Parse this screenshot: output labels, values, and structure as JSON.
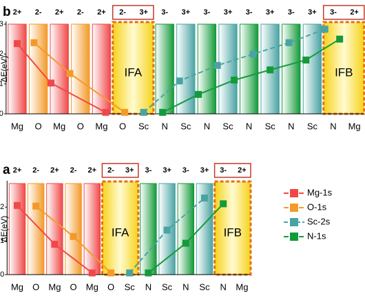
{
  "chart_data": [
    {
      "type": "line",
      "panel": "b",
      "y_label": "ΔE(eV)",
      "categories": [
        "Mg",
        "O",
        "Mg",
        "O",
        "Mg",
        "O",
        "Sc",
        "N",
        "Sc",
        "N",
        "Sc",
        "N",
        "Sc",
        "N",
        "Sc",
        "N",
        "Mg"
      ],
      "charges": [
        "2+",
        "2-",
        "2+",
        "2-",
        "2+",
        "2-",
        "3+",
        "3-",
        "3+",
        "3-",
        "3+",
        "3-",
        "3+",
        "3-",
        "3+",
        "3-",
        "2+"
      ],
      "interfaces": [
        {
          "label": "IFA",
          "categories": [
            5,
            6
          ]
        },
        {
          "label": "IFB",
          "categories": [
            15,
            16
          ]
        }
      ],
      "element_colors": {
        "Mg": "#f04848",
        "O": "#f39a2a",
        "Sc": "#4aa3a3",
        "N": "#139a3a"
      },
      "ylim": [
        0,
        3
      ],
      "yticks": [
        0,
        1,
        2,
        3
      ],
      "series": [
        {
          "color": "#f04848",
          "x": [
            0,
            1.6,
            4.2
          ],
          "values": [
            2.35,
            1.03,
            0.05
          ]
        },
        {
          "color": "#f39a2a",
          "x": [
            0.8,
            2.5,
            5.1
          ],
          "values": [
            2.38,
            1.35,
            0.05
          ]
        },
        {
          "color": "#4aa3a3",
          "dash": true,
          "x": [
            6,
            7.7,
            9.5,
            11.2,
            12.9,
            14.6
          ],
          "values": [
            0.05,
            1.1,
            1.62,
            2.0,
            2.38,
            2.83
          ]
        },
        {
          "color": "#139a3a",
          "x": [
            6.9,
            8.6,
            10.3,
            12.0,
            13.7,
            15.3
          ],
          "values": [
            0.05,
            0.65,
            1.13,
            1.47,
            1.8,
            2.5
          ]
        }
      ]
    },
    {
      "type": "line",
      "panel": "a",
      "y_label": "ΔE(eV)",
      "categories": [
        "Mg",
        "O",
        "Mg",
        "O",
        "Mg",
        "O",
        "Sc",
        "N",
        "Sc",
        "N",
        "Sc",
        "N",
        "Mg"
      ],
      "charges": [
        "2+",
        "2-",
        "2+",
        "2-",
        "2+",
        "2-",
        "3+",
        "3-",
        "3+",
        "3-",
        "3+",
        "3-",
        "2+"
      ],
      "interfaces": [
        {
          "label": "IFA",
          "categories": [
            5,
            6
          ]
        },
        {
          "label": "IFB",
          "categories": [
            11,
            12
          ]
        }
      ],
      "element_colors": {
        "Mg": "#f04848",
        "O": "#f39a2a",
        "Sc": "#4aa3a3",
        "N": "#139a3a"
      },
      "ylim": [
        0,
        2.7
      ],
      "yticks": [
        0,
        1,
        2
      ],
      "series": [
        {
          "name": "Mg-1s",
          "color": "#f04848",
          "x": [
            0,
            2,
            4
          ],
          "values": [
            2.05,
            0.9,
            0.05
          ]
        },
        {
          "name": "O-1s",
          "color": "#f39a2a",
          "x": [
            1,
            3,
            5
          ],
          "values": [
            2.03,
            1.13,
            0.05
          ]
        },
        {
          "name": "Sc-2s",
          "color": "#4aa3a3",
          "dash": true,
          "x": [
            6,
            8,
            10
          ],
          "values": [
            0.05,
            1.32,
            2.27
          ]
        },
        {
          "name": "N-1s",
          "color": "#139a3a",
          "x": [
            7,
            9,
            11
          ],
          "values": [
            0.05,
            0.93,
            2.1
          ]
        }
      ]
    }
  ]
}
